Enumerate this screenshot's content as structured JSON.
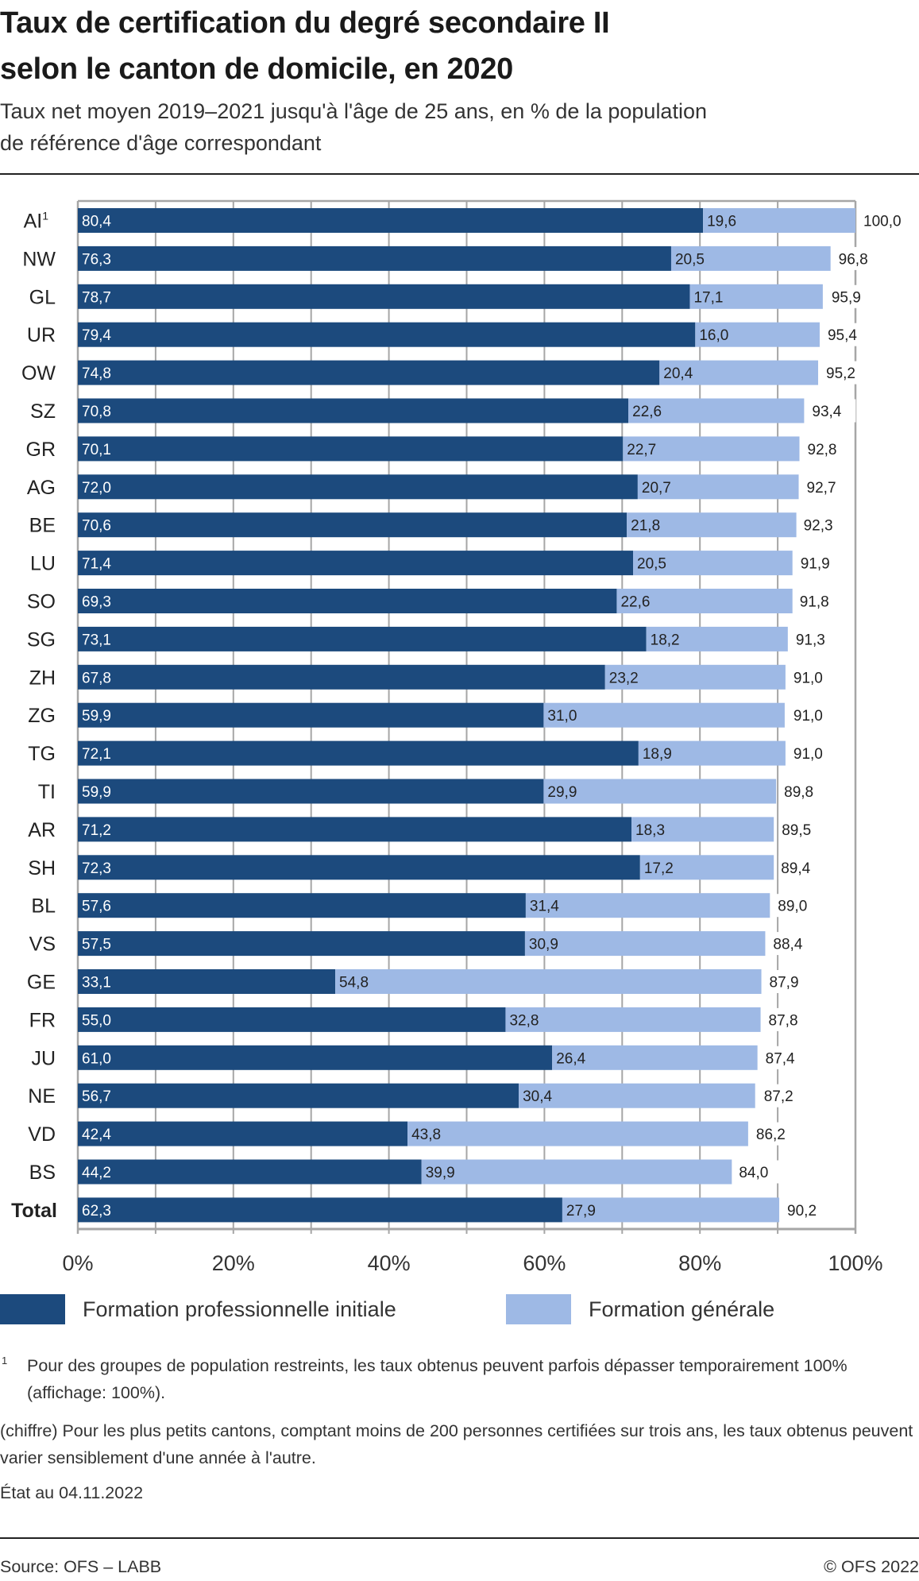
{
  "header": {
    "title_lines": [
      "Taux de certification du degré secondaire II",
      "selon le canton de domicile, en 2020"
    ],
    "subtitle_lines": [
      "Taux net moyen 2019–2021 jusqu'à l'âge de 25 ans, en % de la population",
      "de référence d'âge correspondant"
    ]
  },
  "colors": {
    "series_professional": "#1c4a7d",
    "series_general": "#9eb9e5",
    "grid": "#a6a6a6",
    "text": "#222222"
  },
  "chart_data": {
    "type": "bar",
    "orientation": "horizontal",
    "stacked": true,
    "title": "Taux de certification du degré secondaire II selon le canton de domicile, en 2020",
    "subtitle": "Taux net moyen 2019–2021 jusqu'à l'âge de 25 ans, en % de la population de référence d'âge correspondant",
    "categories": [
      "AI",
      "NW",
      "GL",
      "UR",
      "OW",
      "SZ",
      "GR",
      "AG",
      "BE",
      "LU",
      "SO",
      "SG",
      "ZH",
      "ZG",
      "TG",
      "TI",
      "AR",
      "SH",
      "BL",
      "VS",
      "GE",
      "FR",
      "JU",
      "NE",
      "VD",
      "BS",
      "Total"
    ],
    "category_footnotes": {
      "AI": "1"
    },
    "bold_categories": [
      "Total"
    ],
    "series": [
      {
        "name": "Formation professionnelle initiale",
        "values": [
          80.4,
          76.3,
          78.7,
          79.4,
          74.8,
          70.8,
          70.1,
          72.0,
          70.6,
          71.4,
          69.3,
          73.1,
          67.8,
          59.9,
          72.1,
          59.9,
          71.2,
          72.3,
          57.6,
          57.5,
          33.1,
          55.0,
          61.0,
          56.7,
          42.4,
          44.2,
          62.3
        ],
        "labels": [
          "80,4",
          "76,3",
          "78,7",
          "79,4",
          "74,8",
          "70,8",
          "70,1",
          "72,0",
          "70,6",
          "71,4",
          "69,3",
          "73,1",
          "67,8",
          "59,9",
          "72,1",
          "59,9",
          "71,2",
          "72,3",
          "57,6",
          "57,5",
          "33,1",
          "55,0",
          "61,0",
          "56,7",
          "42,4",
          "44,2",
          "62,3"
        ]
      },
      {
        "name": "Formation générale",
        "values": [
          19.6,
          20.5,
          17.1,
          16.0,
          20.4,
          22.6,
          22.7,
          20.7,
          21.8,
          20.5,
          22.6,
          18.2,
          23.2,
          31.0,
          18.9,
          29.9,
          18.3,
          17.2,
          31.4,
          30.9,
          54.8,
          32.8,
          26.4,
          30.4,
          43.8,
          39.9,
          27.9
        ],
        "labels": [
          "19,6",
          "20,5",
          "17,1",
          "16,0",
          "20,4",
          "22,6",
          "22,7",
          "20,7",
          "21,8",
          "20,5",
          "22,6",
          "18,2",
          "23,2",
          "31,0",
          "18,9",
          "29,9",
          "18,3",
          "17,2",
          "31,4",
          "30,9",
          "54,8",
          "32,8",
          "26,4",
          "30,4",
          "43,8",
          "39,9",
          "27,9"
        ]
      }
    ],
    "totals": [
      100.0,
      96.8,
      95.9,
      95.4,
      95.2,
      93.4,
      92.8,
      92.7,
      92.3,
      91.9,
      91.8,
      91.3,
      91.0,
      91.0,
      91.0,
      89.8,
      89.5,
      89.4,
      89.0,
      88.4,
      87.9,
      87.8,
      87.4,
      87.2,
      86.2,
      84.0,
      90.2
    ],
    "total_labels": [
      "100,0",
      "96,8",
      "95,9",
      "95,4",
      "95,2",
      "93,4",
      "92,8",
      "92,7",
      "92,3",
      "91,9",
      "91,8",
      "91,3",
      "91,0",
      "91,0",
      "91,0",
      "89,8",
      "89,5",
      "89,4",
      "89,0",
      "88,4",
      "87,9",
      "87,8",
      "87,4",
      "87,2",
      "86,2",
      "84,0",
      "90,2"
    ],
    "xlabel": "",
    "ylabel": "",
    "xlim": [
      0,
      100
    ],
    "x_ticks": [
      0,
      20,
      40,
      60,
      80,
      100
    ],
    "x_tick_labels": [
      "0%",
      "20%",
      "40%",
      "60%",
      "80%",
      "100%"
    ],
    "minor_gridlines_every": 10,
    "grid": true,
    "legend_position": "bottom-left",
    "legend": [
      "Formation professionnelle initiale",
      "Formation générale"
    ]
  },
  "notes": {
    "footnote_marker": "1",
    "footnote_1": "Pour des groupes de population restreints, les taux obtenus peuvent parfois dépasser temporairement 100% (affichage: 100%).",
    "note_chiffre": "(chiffre) Pour les plus petits cantons, comptant moins de 200 personnes certifiées sur trois ans, les taux obtenus peuvent varier sensiblement d'une année à l'autre.",
    "state_date": "État au 04.11.2022"
  },
  "footer": {
    "source": "Source: OFS – LABB",
    "copyright": "© OFS 2022"
  }
}
